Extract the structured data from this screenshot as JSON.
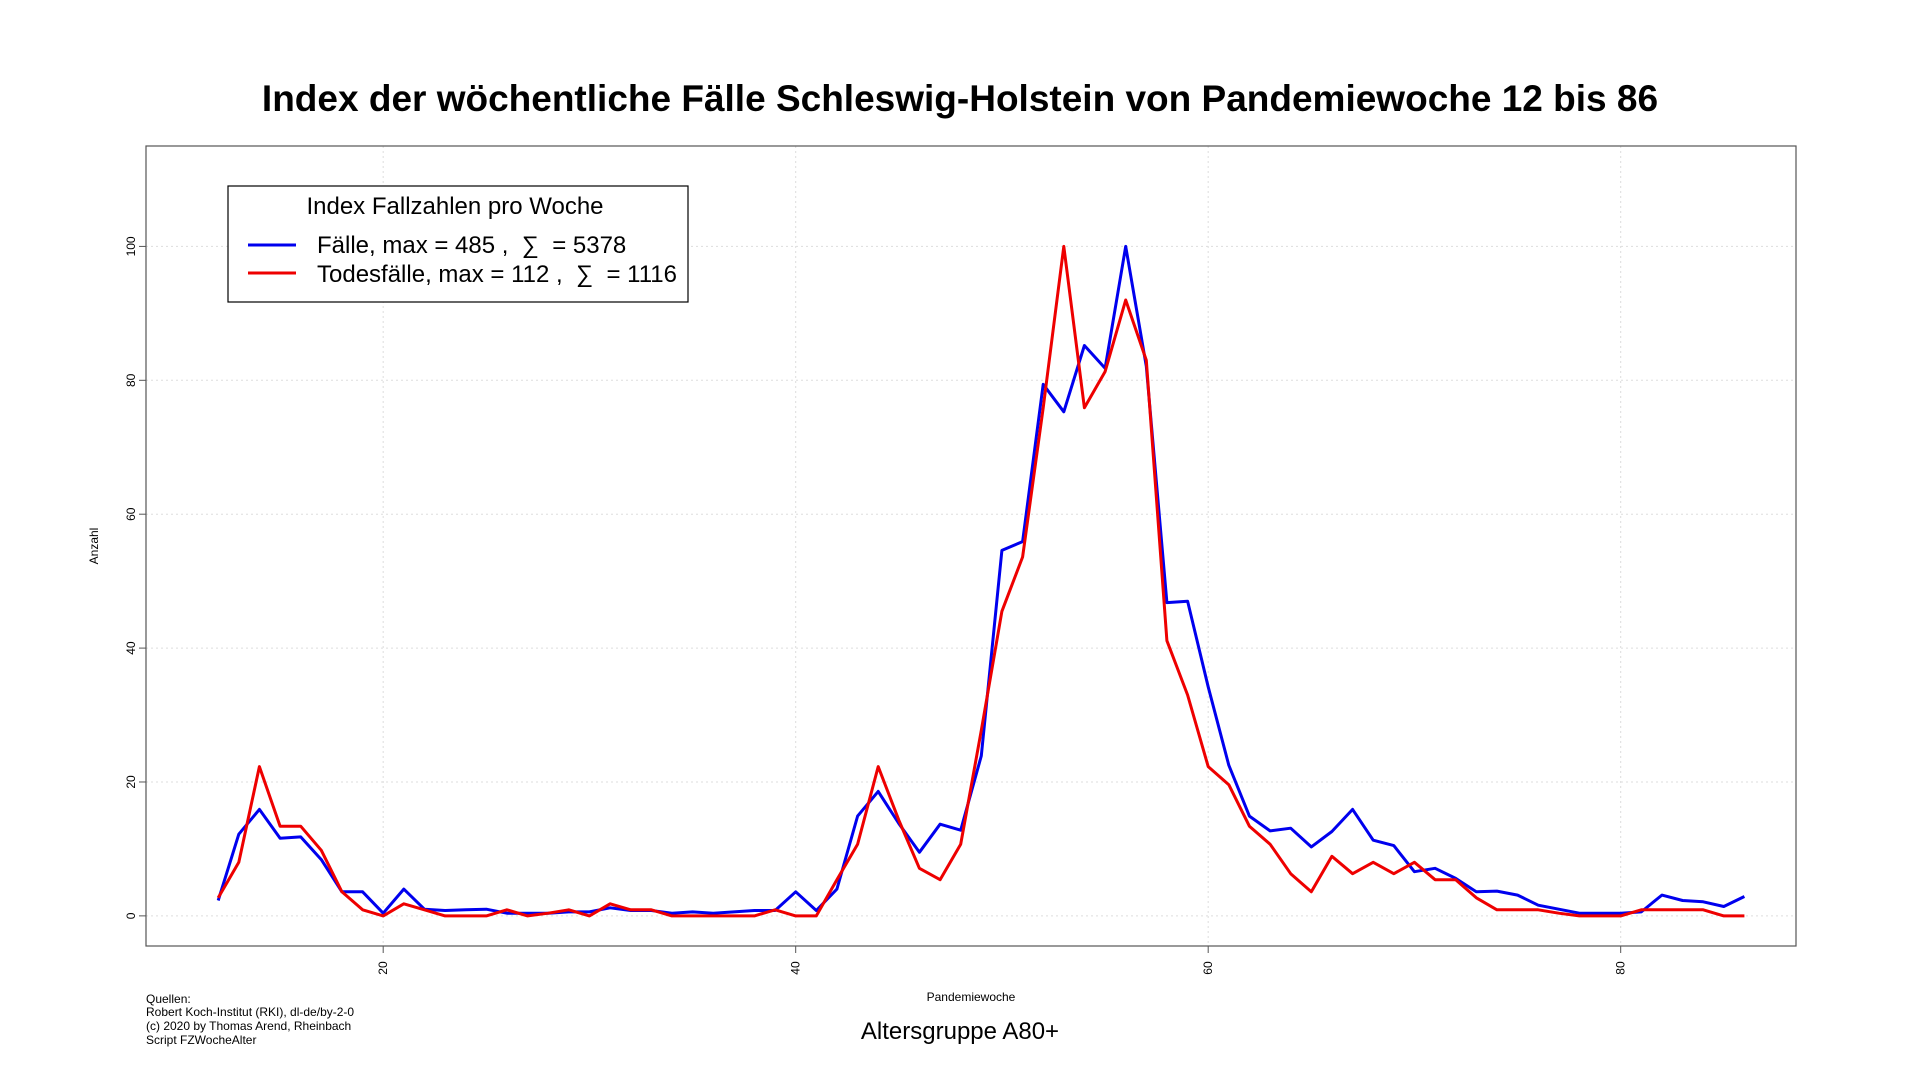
{
  "chart_data": {
    "type": "line",
    "title": "Index der wöchentliche Fälle Schleswig-Holstein von Pandemiewoche 12 bis 86",
    "xlabel": "Pandemiewoche",
    "ylabel": "Anzahl",
    "subtitle": "Altersgruppe A80+",
    "xlim": [
      8.5,
      88.5
    ],
    "ylim": [
      -4.5,
      115
    ],
    "xticks": [
      20,
      40,
      60,
      80
    ],
    "yticks": [
      0,
      20,
      40,
      60,
      80,
      100
    ],
    "grid": true,
    "legend": {
      "title": "Index Fallzahlen pro Woche",
      "position": "top-left"
    },
    "x": [
      12,
      13,
      14,
      15,
      16,
      17,
      18,
      19,
      20,
      21,
      22,
      23,
      24,
      25,
      26,
      27,
      28,
      29,
      30,
      31,
      32,
      33,
      34,
      35,
      36,
      37,
      38,
      39,
      40,
      41,
      42,
      43,
      44,
      45,
      46,
      47,
      48,
      49,
      50,
      51,
      52,
      53,
      54,
      55,
      56,
      57,
      58,
      59,
      60,
      61,
      62,
      63,
      64,
      65,
      66,
      67,
      68,
      69,
      70,
      71,
      72,
      73,
      74,
      75,
      76,
      77,
      78,
      79,
      80,
      81,
      82,
      83,
      84,
      85,
      86
    ],
    "series": [
      {
        "name": "Fälle, max = 485 ,  ∑  = 5378",
        "color": "#0000ee",
        "values": [
          2.3,
          12.2,
          15.9,
          11.6,
          11.8,
          8.4,
          3.6,
          3.6,
          0.4,
          4.0,
          1.0,
          0.8,
          0.9,
          1.0,
          0.4,
          0.4,
          0.4,
          0.6,
          0.6,
          1.2,
          0.8,
          0.8,
          0.4,
          0.6,
          0.4,
          0.6,
          0.8,
          0.8,
          3.6,
          0.8,
          4.0,
          14.9,
          18.6,
          13.8,
          9.5,
          13.7,
          12.8,
          23.9,
          54.6,
          55.9,
          79.4,
          75.3,
          85.2,
          81.8,
          100,
          82.1,
          46.8,
          47.0,
          34.2,
          22.5,
          14.9,
          12.7,
          13.1,
          10.3,
          12.6,
          15.9,
          11.3,
          10.5,
          6.6,
          7.1,
          5.6,
          3.6,
          3.7,
          3.1,
          1.6,
          1.0,
          0.4,
          0.4,
          0.4,
          0.6,
          3.1,
          2.3,
          2.1,
          1.4,
          2.9
        ]
      },
      {
        "name": "Todesfälle, max = 112 ,  ∑  = 1116",
        "color": "#ee0000",
        "values": [
          2.7,
          8.0,
          22.3,
          13.4,
          13.4,
          9.8,
          3.6,
          0.9,
          0,
          1.8,
          0.9,
          0,
          0,
          0,
          0.9,
          0,
          0.4,
          0.9,
          0,
          1.8,
          0.9,
          0.9,
          0,
          0,
          0,
          0,
          0,
          0.9,
          0,
          0,
          5.4,
          10.7,
          22.3,
          14.3,
          7.1,
          5.4,
          10.7,
          27.7,
          45.5,
          53.6,
          75.9,
          100,
          75.9,
          81.3,
          92.0,
          83.0,
          41.1,
          33.0,
          22.3,
          19.6,
          13.4,
          10.7,
          6.3,
          3.6,
          8.9,
          6.3,
          8.0,
          6.3,
          8.0,
          5.4,
          5.4,
          2.7,
          0.9,
          0.9,
          0.9,
          0.4,
          0,
          0,
          0,
          0.9,
          0.9,
          0.9,
          0.9,
          0,
          0
        ]
      }
    ]
  },
  "source": {
    "line1": "Quellen:",
    "line2": "Robert Koch-Institut (RKI), dl-de/by-2-0",
    "line3": "(c) 2020 by Thomas Arend, Rheinbach",
    "line4": "Script FZWocheAlter"
  }
}
